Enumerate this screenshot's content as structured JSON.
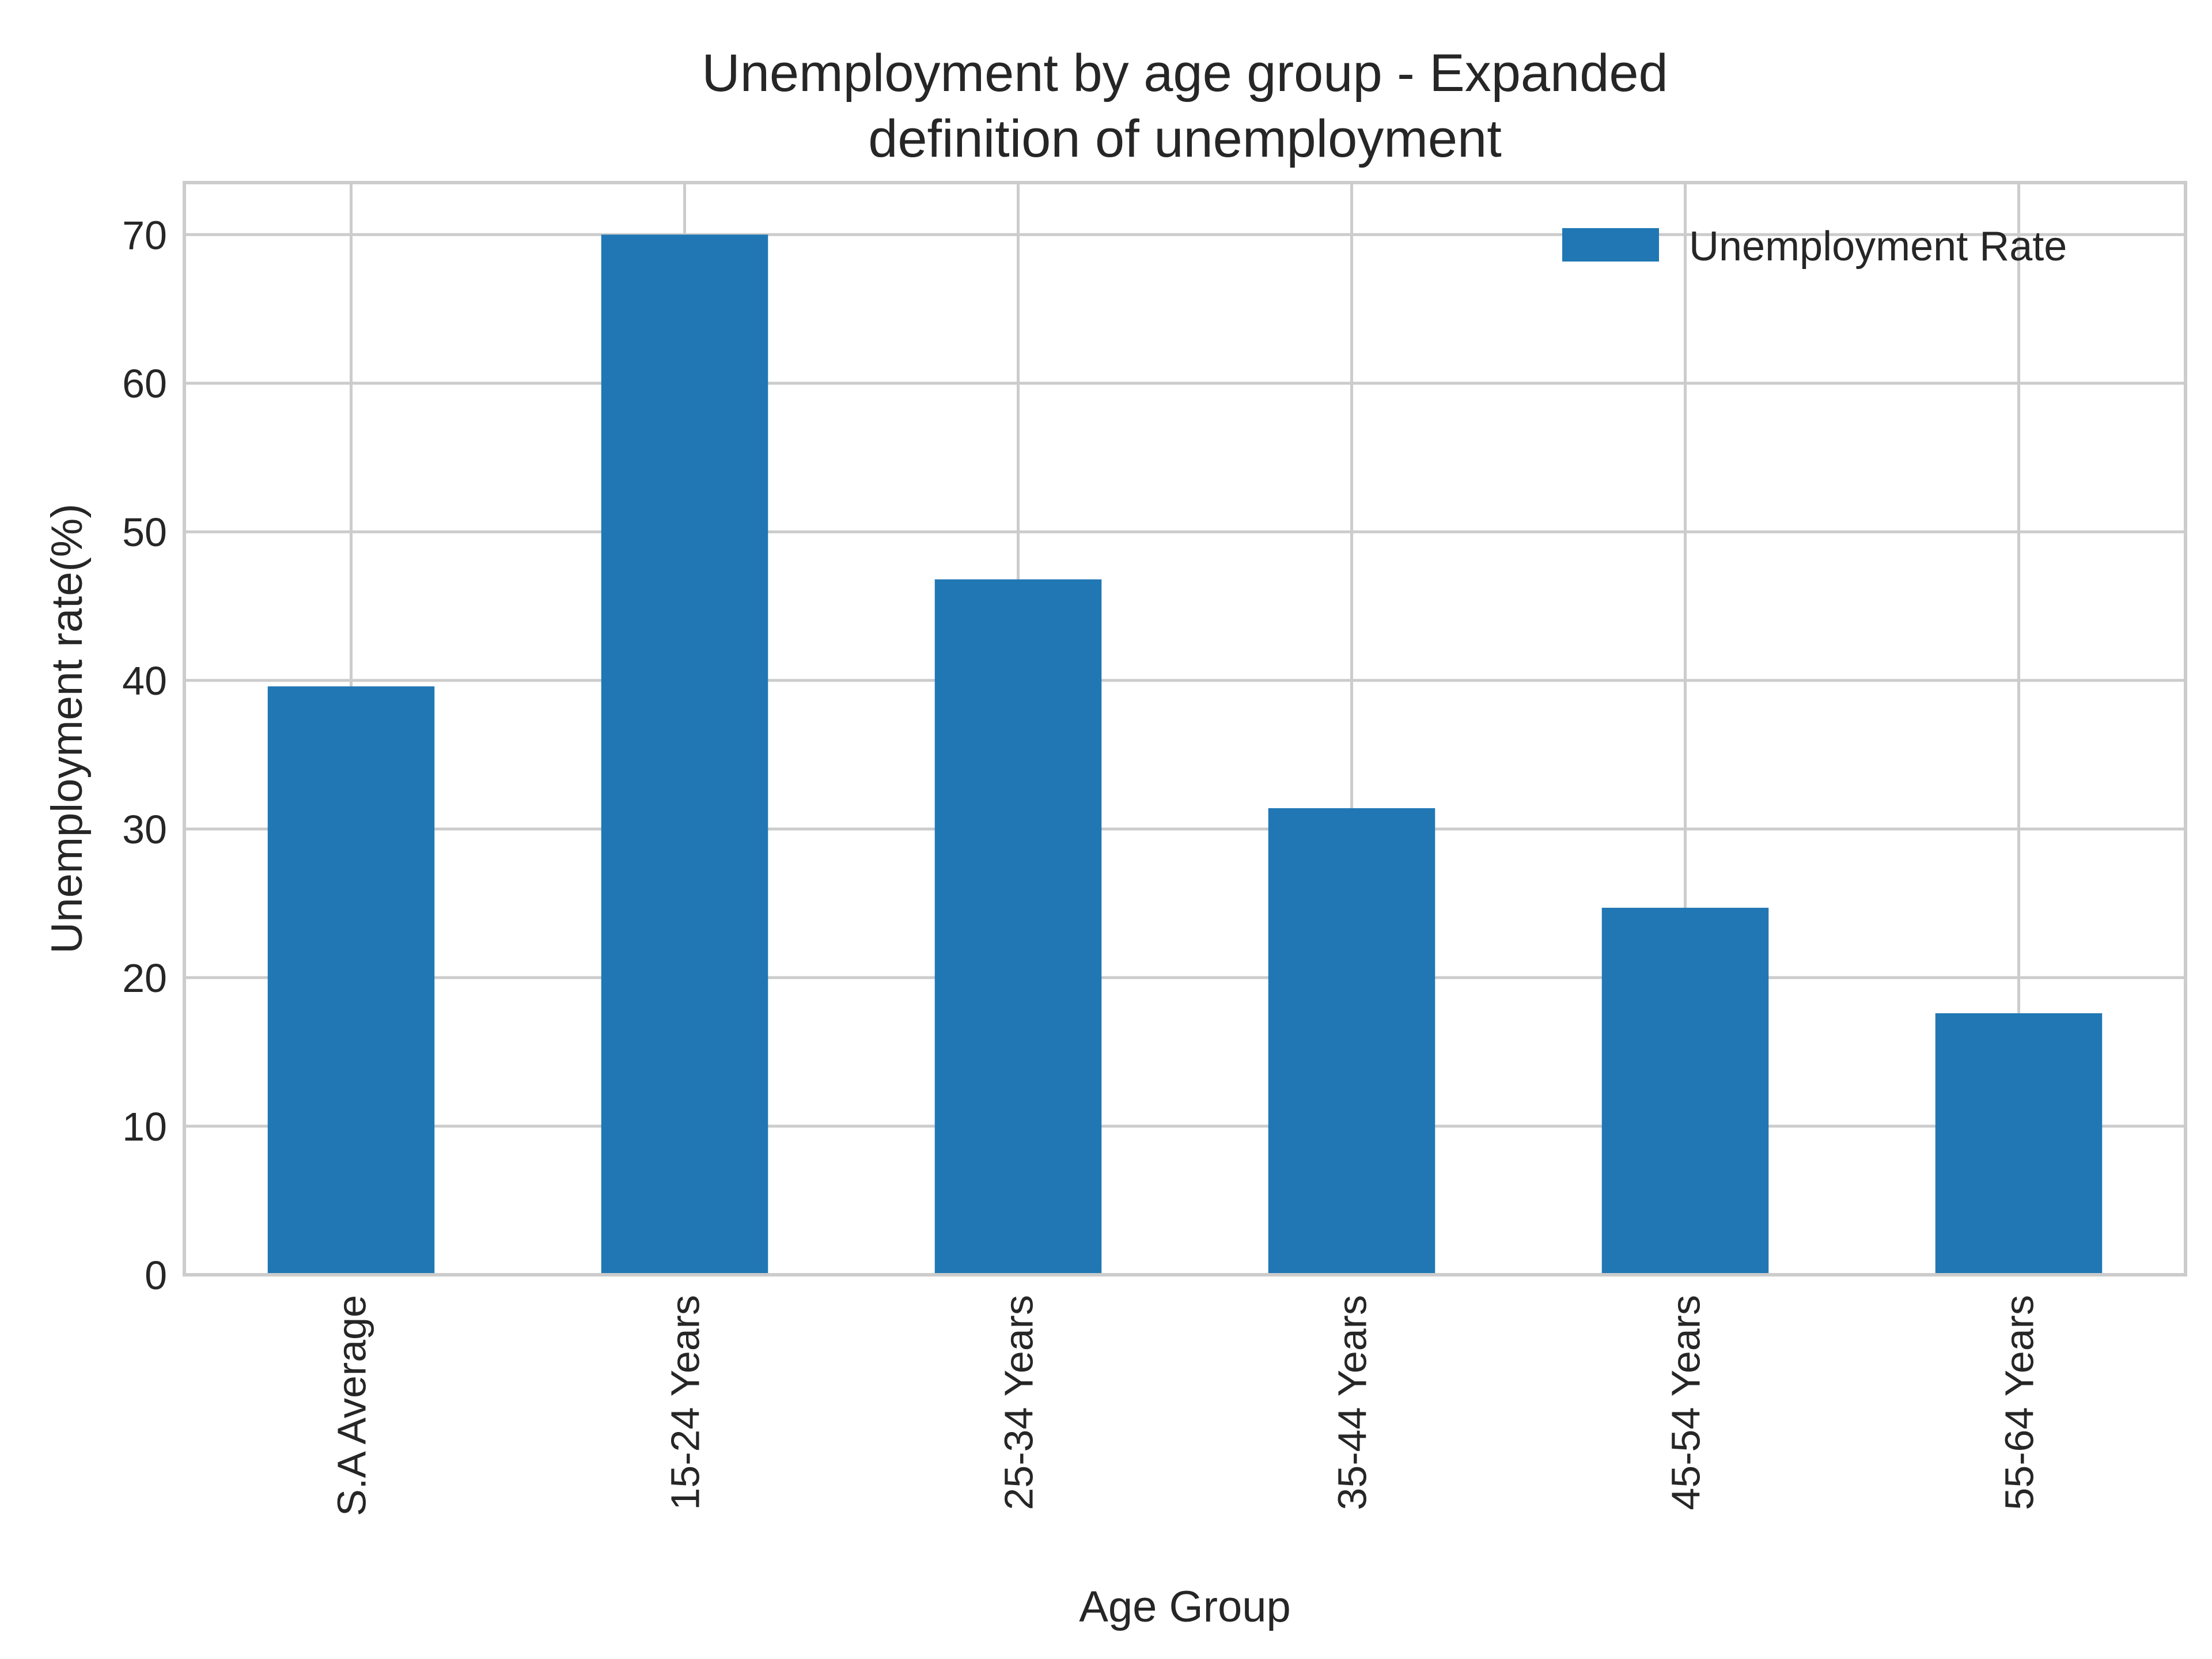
{
  "chart_data": {
    "type": "bar",
    "title": "Unemployment by age group - Expanded definition of unemployment",
    "title_lines": [
      "Unemployment by age group - Expanded",
      "definition of unemployment"
    ],
    "xlabel": "Age Group",
    "ylabel": "Unemployment rate(%)",
    "categories": [
      "S.A Average",
      "15-24 Years",
      "25-34 Years",
      "35-44 Years",
      "45-54 Years",
      "55-64 Years"
    ],
    "series": [
      {
        "name": "Unemployment Rate",
        "values": [
          39.6,
          70.0,
          46.8,
          31.4,
          24.7,
          17.6
        ],
        "color": "#2077b4"
      }
    ],
    "ylim": [
      0,
      73.5
    ],
    "yticks": [
      0,
      10,
      20,
      30,
      40,
      50,
      60,
      70
    ],
    "grid": true,
    "legend_position": "top-right"
  }
}
